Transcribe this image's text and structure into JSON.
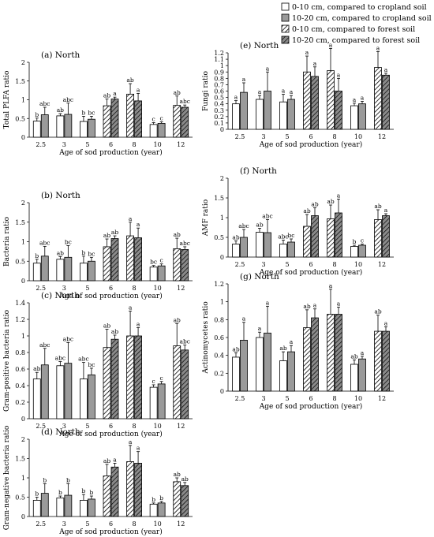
{
  "legend": {
    "items": [
      {
        "label": "0-10 cm, compared to cropland soil",
        "style": "white"
      },
      {
        "label": "10-20 cm, compared to cropland soil",
        "style": "gray"
      },
      {
        "label": "0-10 cm, compared to forest soil",
        "style": "hatch-light"
      },
      {
        "label": "10-20 cm, compared to forest soil",
        "style": "hatch-dark"
      }
    ]
  },
  "colors": {
    "white_fill": "#ffffff",
    "gray_fill": "#9a9a9a",
    "hatch_dark_bg": "#8a8a8a"
  },
  "chart_data": [
    {
      "type": "bar",
      "title": "(a) North",
      "ylabel": "Total PLFA ratio",
      "xlabel": "Age of sod production (year)",
      "categories": [
        "2.5",
        "3",
        "5",
        "6",
        "8",
        "10",
        "12"
      ],
      "ylim": [
        0,
        2
      ],
      "yticks": [
        "0",
        "0.5",
        "1",
        "1.5",
        "2"
      ],
      "ytick_values": [
        0,
        0.5,
        1,
        1.5,
        2
      ],
      "series": [
        {
          "style": "white",
          "values": [
            0.43,
            0.57,
            0.42,
            null,
            null,
            0.34,
            null
          ],
          "errors": [
            0.08,
            0.06,
            0.14,
            null,
            null,
            0.05,
            null
          ],
          "labels": [
            "b",
            "ab",
            "b",
            "",
            "",
            "c",
            ""
          ]
        },
        {
          "style": "gray",
          "values": [
            0.6,
            0.61,
            0.48,
            null,
            null,
            0.37,
            null
          ],
          "errors": [
            0.2,
            0.3,
            0.08,
            null,
            null,
            0.04,
            null
          ],
          "labels": [
            "abc",
            "abc",
            "bc",
            "",
            "",
            "c",
            ""
          ]
        },
        {
          "style": "hatch-light",
          "values": [
            null,
            null,
            null,
            0.84,
            1.15,
            null,
            0.85
          ],
          "errors": [
            null,
            null,
            null,
            0.18,
            0.28,
            null,
            0.25
          ],
          "labels": [
            "",
            "",
            "",
            "ab",
            "ab",
            "",
            "ab"
          ]
        },
        {
          "style": "hatch-dark",
          "values": [
            null,
            null,
            null,
            1.02,
            0.97,
            null,
            0.8
          ],
          "errors": [
            null,
            null,
            null,
            0.05,
            0.2,
            null,
            0.06
          ],
          "labels": [
            "",
            "",
            "",
            "a",
            "a",
            "",
            "abc"
          ]
        }
      ]
    },
    {
      "type": "bar",
      "title": "(b) North",
      "ylabel": "Bacteria ratio",
      "xlabel": "Age of sod production (year)",
      "categories": [
        "2.5",
        "3",
        "5",
        "6",
        "8",
        "10",
        "12"
      ],
      "ylim": [
        0,
        2
      ],
      "yticks": [
        "0",
        "0.5",
        "1",
        "1.5",
        "2"
      ],
      "ytick_values": [
        0,
        0.5,
        1,
        1.5,
        2
      ],
      "series": [
        {
          "style": "white",
          "values": [
            0.45,
            0.55,
            0.45,
            null,
            null,
            0.35,
            null
          ],
          "errors": [
            0.1,
            0.07,
            0.18,
            null,
            null,
            0.04,
            null
          ],
          "labels": [
            "b",
            "ab",
            "b",
            "",
            "",
            "bc",
            ""
          ]
        },
        {
          "style": "gray",
          "values": [
            0.63,
            0.6,
            0.5,
            null,
            null,
            0.38,
            null
          ],
          "errors": [
            0.25,
            0.3,
            0.1,
            null,
            null,
            0.05,
            null
          ],
          "labels": [
            "abc",
            "bc",
            "bc",
            "",
            "",
            "c",
            ""
          ]
        },
        {
          "style": "hatch-light",
          "values": [
            null,
            null,
            null,
            0.87,
            1.15,
            null,
            0.82
          ],
          "errors": [
            null,
            null,
            null,
            0.2,
            0.35,
            null,
            0.27
          ],
          "labels": [
            "",
            "",
            "",
            "ab",
            "a",
            "",
            "ab"
          ]
        },
        {
          "style": "hatch-dark",
          "values": [
            null,
            null,
            null,
            1.08,
            1.1,
            null,
            0.8
          ],
          "errors": [
            null,
            null,
            null,
            0.07,
            0.25,
            null,
            0.07
          ],
          "labels": [
            "",
            "",
            "",
            "ab",
            "a",
            "",
            "abc"
          ]
        }
      ]
    },
    {
      "type": "bar",
      "title": "(c) North",
      "ylabel": "Gram-positive bacteria ratio",
      "xlabel": "Age of sod production (year)",
      "categories": [
        "2.5",
        "3",
        "5",
        "6",
        "8",
        "10",
        "12"
      ],
      "ylim": [
        0,
        1.4
      ],
      "yticks": [
        "0",
        "0.2",
        "0.4",
        "0.6",
        "0.8",
        "1",
        "1.2",
        "1.4"
      ],
      "ytick_values": [
        0,
        0.2,
        0.4,
        0.6,
        0.8,
        1,
        1.2,
        1.4
      ],
      "series": [
        {
          "style": "white",
          "values": [
            0.48,
            0.64,
            0.48,
            null,
            null,
            0.38,
            null
          ],
          "errors": [
            0.08,
            0.05,
            0.2,
            null,
            null,
            0.03,
            null
          ],
          "labels": [
            "ab",
            "abc",
            "abc",
            "",
            "",
            "c",
            ""
          ]
        },
        {
          "style": "gray",
          "values": [
            0.65,
            0.67,
            0.53,
            null,
            null,
            0.42,
            null
          ],
          "errors": [
            0.2,
            0.25,
            0.08,
            null,
            null,
            0.03,
            null
          ],
          "labels": [
            "abc",
            "abc",
            "bc",
            "",
            "",
            "c",
            ""
          ]
        },
        {
          "style": "hatch-light",
          "values": [
            null,
            null,
            null,
            0.86,
            1.0,
            null,
            0.88
          ],
          "errors": [
            null,
            null,
            null,
            0.22,
            0.3,
            null,
            0.27
          ],
          "labels": [
            "",
            "",
            "",
            "ab",
            "a",
            "",
            "ab"
          ]
        },
        {
          "style": "hatch-dark",
          "values": [
            null,
            null,
            null,
            0.96,
            1.0,
            null,
            0.83
          ],
          "errors": [
            null,
            null,
            null,
            0.05,
            0.1,
            null,
            0.06
          ],
          "labels": [
            "",
            "",
            "",
            "ab",
            "a",
            "",
            "abc"
          ]
        }
      ]
    },
    {
      "type": "bar",
      "title": "(d) North",
      "ylabel": "Gram-negative bacteria ratio",
      "xlabel": "Age of sod production (year)",
      "categories": [
        "2.5",
        "3",
        "5",
        "6",
        "8",
        "10",
        "12"
      ],
      "ylim": [
        0,
        2
      ],
      "yticks": [
        "0",
        "0.5",
        "1",
        "1.5",
        "2"
      ],
      "ytick_values": [
        0,
        0.5,
        1,
        1.5,
        2
      ],
      "series": [
        {
          "style": "white",
          "values": [
            0.42,
            0.48,
            0.42,
            null,
            null,
            0.32,
            null
          ],
          "errors": [
            0.08,
            0.05,
            0.15,
            null,
            null,
            0.03,
            null
          ],
          "labels": [
            "b",
            "b",
            "b",
            "",
            "",
            "b",
            ""
          ]
        },
        {
          "style": "gray",
          "values": [
            0.6,
            0.55,
            0.45,
            null,
            null,
            0.35,
            null
          ],
          "errors": [
            0.25,
            0.3,
            0.08,
            null,
            null,
            0.04,
            null
          ],
          "labels": [
            "b",
            "b",
            "b",
            "",
            "",
            "b",
            ""
          ]
        },
        {
          "style": "hatch-light",
          "values": [
            null,
            null,
            null,
            1.05,
            1.42,
            null,
            0.9
          ],
          "errors": [
            null,
            null,
            null,
            0.3,
            0.42,
            null,
            0.1
          ],
          "labels": [
            "",
            "",
            "",
            "ab",
            "a",
            "",
            "ab"
          ]
        },
        {
          "style": "hatch-dark",
          "values": [
            null,
            null,
            null,
            1.28,
            1.38,
            null,
            0.8
          ],
          "errors": [
            null,
            null,
            null,
            0.1,
            0.3,
            null,
            0.08
          ],
          "labels": [
            "",
            "",
            "",
            "a",
            "a",
            "",
            "ab"
          ]
        }
      ]
    },
    {
      "type": "bar",
      "title": "(e) North",
      "ylabel": "Fungi ratio",
      "xlabel": "Age of sod production (year)",
      "categories": [
        "2.5",
        "3",
        "5",
        "6",
        "8",
        "10",
        "12"
      ],
      "ylim": [
        0,
        1.2
      ],
      "yticks": [
        "0",
        "0.1",
        "0.2",
        "0.3",
        "0.4",
        "0.5",
        "0.6",
        "0.7",
        "0.8",
        "0.9",
        "1",
        "1.1",
        "1.2"
      ],
      "ytick_values": [
        0,
        0.1,
        0.2,
        0.3,
        0.4,
        0.5,
        0.6,
        0.7,
        0.8,
        0.9,
        1,
        1.1,
        1.2
      ],
      "series": [
        {
          "style": "white",
          "values": [
            0.4,
            0.47,
            0.43,
            null,
            null,
            0.37,
            null
          ],
          "errors": [
            0.05,
            0.06,
            0.12,
            null,
            null,
            0.04,
            null
          ],
          "labels": [
            "a",
            "a",
            "a",
            "",
            "",
            "a",
            ""
          ]
        },
        {
          "style": "gray",
          "values": [
            0.58,
            0.6,
            0.47,
            null,
            null,
            0.4,
            null
          ],
          "errors": [
            0.15,
            0.3,
            0.06,
            null,
            null,
            0.04,
            null
          ],
          "labels": [
            "a",
            "a",
            "a",
            "",
            "",
            "a",
            ""
          ]
        },
        {
          "style": "hatch-light",
          "values": [
            null,
            null,
            null,
            0.9,
            0.92,
            null,
            0.97
          ],
          "errors": [
            null,
            null,
            null,
            0.25,
            0.35,
            null,
            0.25
          ],
          "labels": [
            "",
            "",
            "",
            "a",
            "a",
            "",
            "a"
          ]
        },
        {
          "style": "hatch-dark",
          "values": [
            null,
            null,
            null,
            0.83,
            0.6,
            null,
            0.85
          ],
          "errors": [
            null,
            null,
            null,
            0.15,
            0.2,
            null,
            0.03
          ],
          "labels": [
            "",
            "",
            "",
            "a",
            "a",
            "",
            "a"
          ]
        }
      ]
    },
    {
      "type": "bar",
      "title": "(f) North",
      "ylabel": "AMF ratio",
      "xlabel": "Age of sod production (year)",
      "categories": [
        "2.5",
        "3",
        "5",
        "6",
        "8",
        "10",
        "12"
      ],
      "ylim": [
        0,
        2
      ],
      "yticks": [
        "0",
        "0.5",
        "1",
        "1.5",
        "2"
      ],
      "ytick_values": [
        0,
        0.5,
        1,
        1.5,
        2
      ],
      "series": [
        {
          "style": "white",
          "values": [
            0.33,
            0.63,
            0.33,
            null,
            null,
            0.27,
            null
          ],
          "errors": [
            0.08,
            0.1,
            0.1,
            null,
            null,
            0.03,
            null
          ],
          "labels": [
            "ab",
            "ab",
            "abc",
            "",
            "",
            "b",
            ""
          ]
        },
        {
          "style": "gray",
          "values": [
            0.5,
            0.62,
            0.38,
            null,
            null,
            0.3,
            null
          ],
          "errors": [
            0.2,
            0.33,
            0.08,
            null,
            null,
            0.03,
            null
          ],
          "labels": [
            "abc",
            "abc",
            "bc",
            "",
            "",
            "c",
            ""
          ]
        },
        {
          "style": "hatch-light",
          "values": [
            null,
            null,
            null,
            0.78,
            0.97,
            null,
            0.95
          ],
          "errors": [
            null,
            null,
            null,
            0.3,
            0.35,
            null,
            0.25
          ],
          "labels": [
            "",
            "",
            "",
            "ab",
            "ab",
            "",
            "ab"
          ]
        },
        {
          "style": "hatch-dark",
          "values": [
            null,
            null,
            null,
            1.05,
            1.12,
            null,
            1.05
          ],
          "errors": [
            null,
            null,
            null,
            0.2,
            0.35,
            null,
            0.05
          ],
          "labels": [
            "",
            "",
            "",
            "ab",
            "a",
            "",
            "a"
          ]
        }
      ]
    },
    {
      "type": "bar",
      "title": "(g) North",
      "ylabel": "Actinomycetes ratio",
      "xlabel": "Age of sod production (year)",
      "categories": [
        "2.5",
        "3",
        "5",
        "6",
        "8",
        "10",
        "12"
      ],
      "ylim": [
        0,
        1.2
      ],
      "yticks": [
        "0",
        "0.2",
        "0.4",
        "0.6",
        "0.8",
        "1",
        "1.2"
      ],
      "ytick_values": [
        0,
        0.2,
        0.4,
        0.6,
        0.8,
        1,
        1.2
      ],
      "series": [
        {
          "style": "white",
          "values": [
            0.38,
            0.6,
            0.34,
            null,
            null,
            0.3,
            null
          ],
          "errors": [
            0.05,
            0.06,
            0.1,
            null,
            null,
            0.05,
            null
          ],
          "labels": [
            "ab",
            "a",
            "ab",
            "",
            "",
            "ab",
            ""
          ]
        },
        {
          "style": "gray",
          "values": [
            0.57,
            0.65,
            0.44,
            null,
            null,
            0.36,
            null
          ],
          "errors": [
            0.2,
            0.3,
            0.07,
            null,
            null,
            0.03,
            null
          ],
          "labels": [
            "a",
            "a",
            "a",
            "",
            "",
            "a",
            ""
          ]
        },
        {
          "style": "hatch-light",
          "values": [
            null,
            null,
            null,
            0.71,
            0.86,
            null,
            0.67
          ],
          "errors": [
            null,
            null,
            null,
            0.2,
            0.28,
            null,
            0.18
          ],
          "labels": [
            "",
            "",
            "",
            "ab",
            "a",
            "",
            "ab"
          ]
        },
        {
          "style": "hatch-dark",
          "values": [
            null,
            null,
            null,
            0.82,
            0.86,
            null,
            0.67
          ],
          "errors": [
            null,
            null,
            null,
            0.1,
            0.08,
            null,
            0.05
          ],
          "labels": [
            "",
            "",
            "",
            "a",
            "a",
            "",
            "a"
          ]
        }
      ]
    }
  ]
}
